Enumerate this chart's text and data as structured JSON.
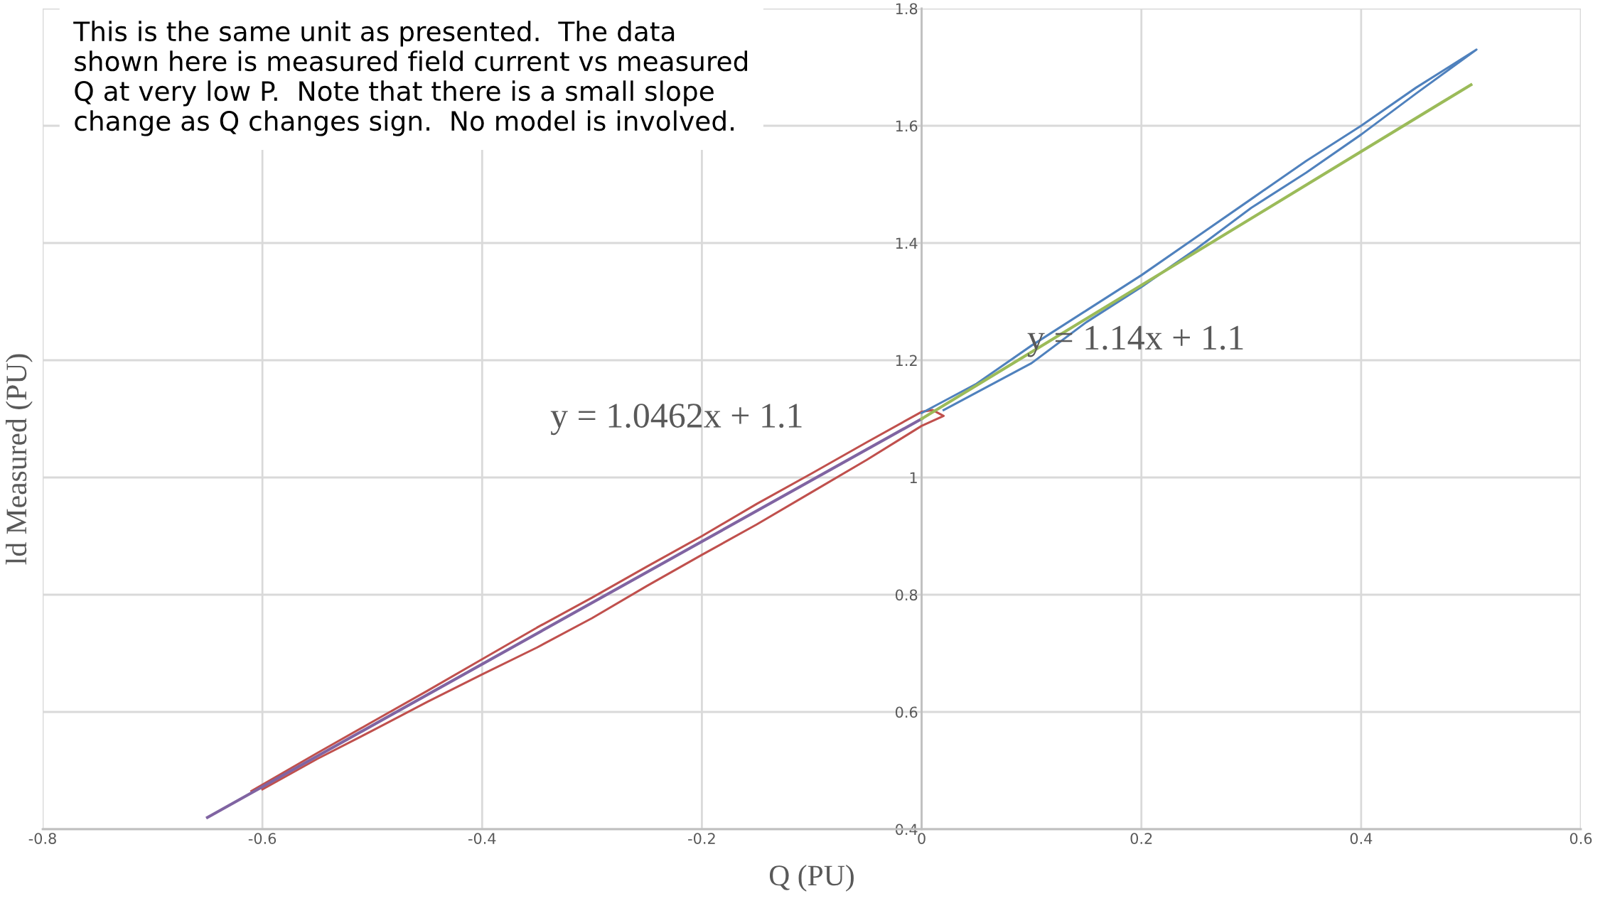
{
  "chart_data": {
    "type": "line",
    "xlabel": "Q (PU)",
    "ylabel": "ld Measured (PU)",
    "xlim": [
      -0.8,
      0.6
    ],
    "xticks": [
      -0.8,
      -0.6,
      -0.4,
      -0.2,
      0,
      0.2,
      0.4,
      0.6
    ],
    "ylim": [
      0.4,
      1.8
    ],
    "yticks": [
      0.4,
      0.6,
      0.8,
      1,
      1.2,
      1.4,
      1.6,
      1.8
    ],
    "grid": true,
    "legend": false,
    "marker": "none",
    "line_style": "solid",
    "series": [
      {
        "color": "#c0504d",
        "x": [
          -0.61,
          -0.55,
          -0.5,
          -0.45,
          -0.4,
          -0.35,
          -0.3,
          -0.25,
          -0.2,
          -0.15,
          -0.1,
          -0.05,
          0,
          0.01,
          0.02,
          0,
          -0.05,
          -0.1,
          -0.15,
          -0.2,
          -0.25,
          -0.3,
          -0.35,
          -0.4,
          -0.45,
          -0.5,
          -0.55,
          -0.6
        ],
        "values": [
          0.465,
          0.53,
          0.583,
          0.636,
          0.69,
          0.744,
          0.795,
          0.848,
          0.9,
          0.955,
          1.007,
          1.06,
          1.112,
          1.115,
          1.105,
          1.088,
          1.03,
          0.975,
          0.92,
          0.868,
          0.815,
          0.76,
          0.71,
          0.664,
          0.617,
          0.568,
          0.52,
          0.468
        ]
      },
      {
        "color": "#4f81bd",
        "x": [
          0,
          0.05,
          0.1,
          0.15,
          0.2,
          0.25,
          0.3,
          0.35,
          0.4,
          0.45,
          0.505,
          0.45,
          0.4,
          0.35,
          0.3,
          0.25,
          0.2,
          0.15,
          0.1,
          0.05,
          0.02
        ],
        "values": [
          1.11,
          1.16,
          1.225,
          1.285,
          1.345,
          1.41,
          1.475,
          1.54,
          1.6,
          1.665,
          1.73,
          1.655,
          1.585,
          1.52,
          1.46,
          1.39,
          1.325,
          1.265,
          1.195,
          1.145,
          1.115
        ]
      },
      {
        "color": "#8064a2",
        "x": [
          -0.65,
          0
        ],
        "values": [
          0.42,
          1.1
        ]
      },
      {
        "color": "#9bbb59",
        "x": [
          0,
          0.5
        ],
        "values": [
          1.1,
          1.67
        ]
      }
    ],
    "annotations": [
      "This is the same unit as presented.  The data shown here is measured field current vs measured Q at very low P.  Note that there is a small slope change as Q changes sign.  No model is involved.",
      "y = 1.0462x + 1.1",
      "y = 1.14x + 1.1"
    ]
  }
}
